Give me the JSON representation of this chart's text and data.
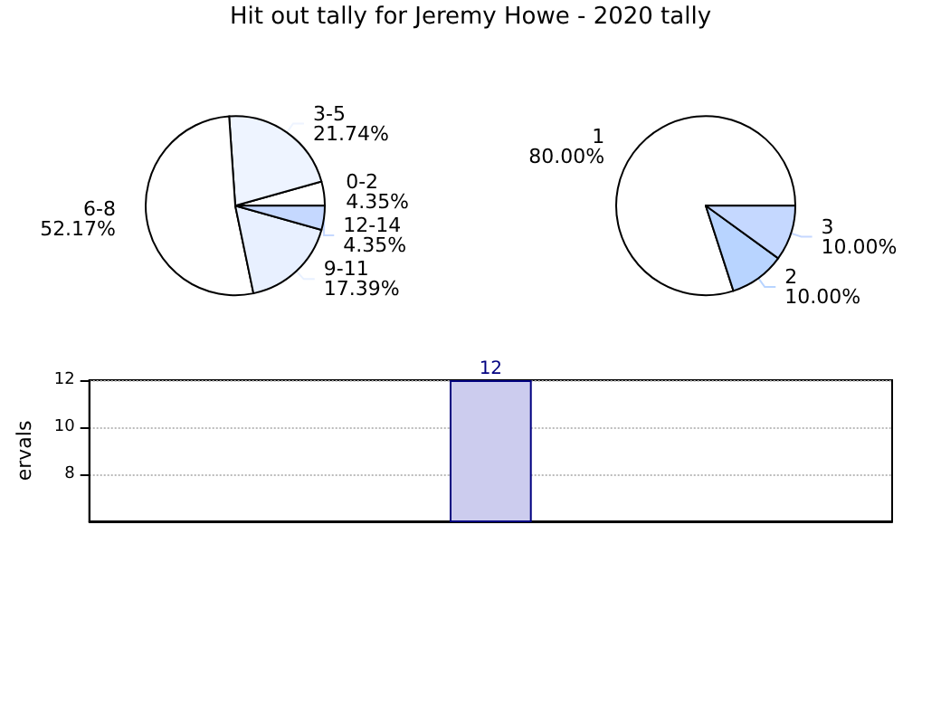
{
  "chart_data": [
    {
      "type": "pie",
      "title": "Hit out tally for Jeremy Howe - 2020 tally",
      "categories": [
        "0-2",
        "3-5",
        "6-8",
        "9-11",
        "12-14"
      ],
      "values": [
        4.35,
        21.74,
        52.17,
        17.39,
        4.35
      ],
      "value_labels": [
        "4.35%",
        "21.74%",
        "52.17%",
        "17.39%",
        "4.35%"
      ],
      "colors": [
        "#ffffff",
        "#eef4ff",
        "#ffffff",
        "#e8f0ff",
        "#c5d8ff"
      ]
    },
    {
      "type": "pie",
      "categories": [
        "1",
        "2",
        "3"
      ],
      "values": [
        80,
        10,
        10
      ],
      "value_labels": [
        "80.00%",
        "10.00%",
        "10.00%"
      ],
      "colors": [
        "#ffffff",
        "#b8d4ff",
        "#c5d8ff"
      ]
    },
    {
      "type": "bar",
      "ylabel": "ervals",
      "categories": [
        null,
        null,
        null,
        null,
        null,
        null,
        null,
        null,
        null
      ],
      "values": [
        null,
        null,
        null,
        null,
        12,
        null,
        null,
        null,
        null
      ],
      "color": "#ccccee",
      "ylim": [
        6,
        12
      ],
      "yticks": [
        8,
        10,
        12
      ],
      "grid": "y",
      "data_labels": true
    }
  ]
}
